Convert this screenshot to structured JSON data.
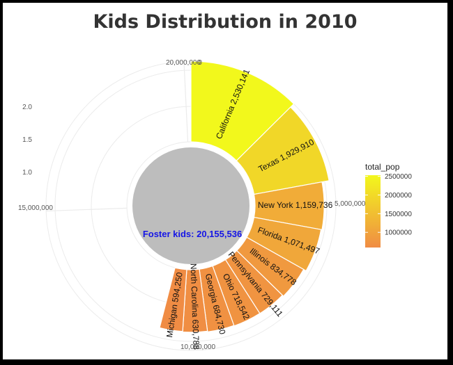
{
  "title": "Kids Distribution in 2010",
  "chart_data": {
    "type": "bar",
    "coord": "polar",
    "title": "Kids Distribution in 2010",
    "categories": [
      "California",
      "Texas",
      "New York",
      "Florida",
      "Illinois",
      "Pennsylvania",
      "Ohio",
      "Georgia",
      "North Carolina",
      "Michigan"
    ],
    "values": [
      2530141,
      1929910,
      1159736,
      1071497,
      834778,
      729111,
      718542,
      684730,
      630788,
      594250
    ],
    "bar_labels": [
      "California 2,530,141",
      "Texas 1,929,910",
      "New York 1,159,736",
      "Florida 1,071,497",
      "Illinois 834,778",
      "Pennsylvania 729,111",
      "Ohio 718,542",
      "Georgia 684,730",
      "North Carolina 630,788",
      "Michigan 594,250"
    ],
    "angular_axis": {
      "range": [
        0,
        20155536
      ],
      "tick_values": [
        0,
        5000000,
        10000000,
        15000000,
        20000000
      ],
      "tick_labels": [
        "0",
        "5,000,000",
        "10,000,000",
        "15,000,000",
        "20,000,000"
      ]
    },
    "radial_axis": {
      "tick_labels": [
        "1.0",
        "1.5",
        "2.0"
      ]
    },
    "center_label": "Foster kids:  20,155,536",
    "center_total": 20155536,
    "legend": {
      "title": "total_pop",
      "position": "right",
      "range": [
        594250,
        2530141
      ],
      "ticks": [
        2500000,
        2000000,
        1500000,
        1000000
      ],
      "tick_labels": [
        "2500000",
        "2000000",
        "1500000",
        "1000000"
      ],
      "color_low": "#f08c44",
      "color_high": "#f2f81c"
    },
    "grid": true
  }
}
